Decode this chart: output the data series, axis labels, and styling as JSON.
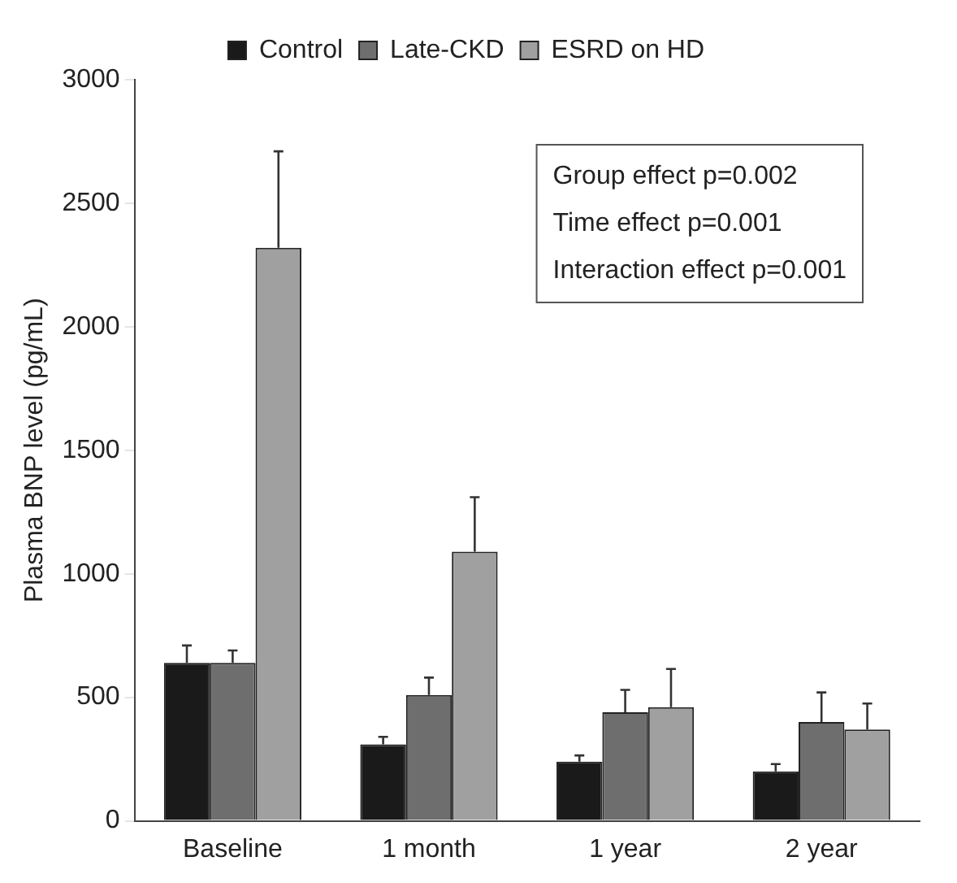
{
  "chart_data": {
    "type": "bar",
    "ylabel": "Plasma BNP level (pg/mL)",
    "categories": [
      "Baseline",
      "1 month",
      "1 year",
      "2 year"
    ],
    "series": [
      {
        "name": "Control",
        "color": "#1a1a1a",
        "values": [
          640,
          310,
          240,
          200
        ],
        "errors": [
          [
            640,
            710
          ],
          [
            310,
            340
          ],
          [
            240,
            265
          ],
          [
            200,
            230
          ]
        ]
      },
      {
        "name": "Late-CKD",
        "color": "#6e6e6e",
        "values": [
          640,
          510,
          440,
          400
        ],
        "errors": [
          [
            640,
            690
          ],
          [
            510,
            580
          ],
          [
            440,
            530
          ],
          [
            400,
            520
          ]
        ]
      },
      {
        "name": "ESRD on HD",
        "color": "#a0a0a0",
        "values": [
          2320,
          1090,
          460,
          370
        ],
        "errors": [
          [
            2320,
            2710
          ],
          [
            1090,
            1310
          ],
          [
            460,
            615
          ],
          [
            370,
            475
          ]
        ]
      }
    ],
    "ylim": [
      0,
      3000
    ],
    "yticks": [
      0,
      500,
      1000,
      1500,
      2000,
      2500,
      3000
    ],
    "grid": false,
    "legend": "top",
    "annotations": [
      "Group effect p=0.002",
      "Time effect p=0.001",
      "Interaction effect p=0.001"
    ]
  }
}
